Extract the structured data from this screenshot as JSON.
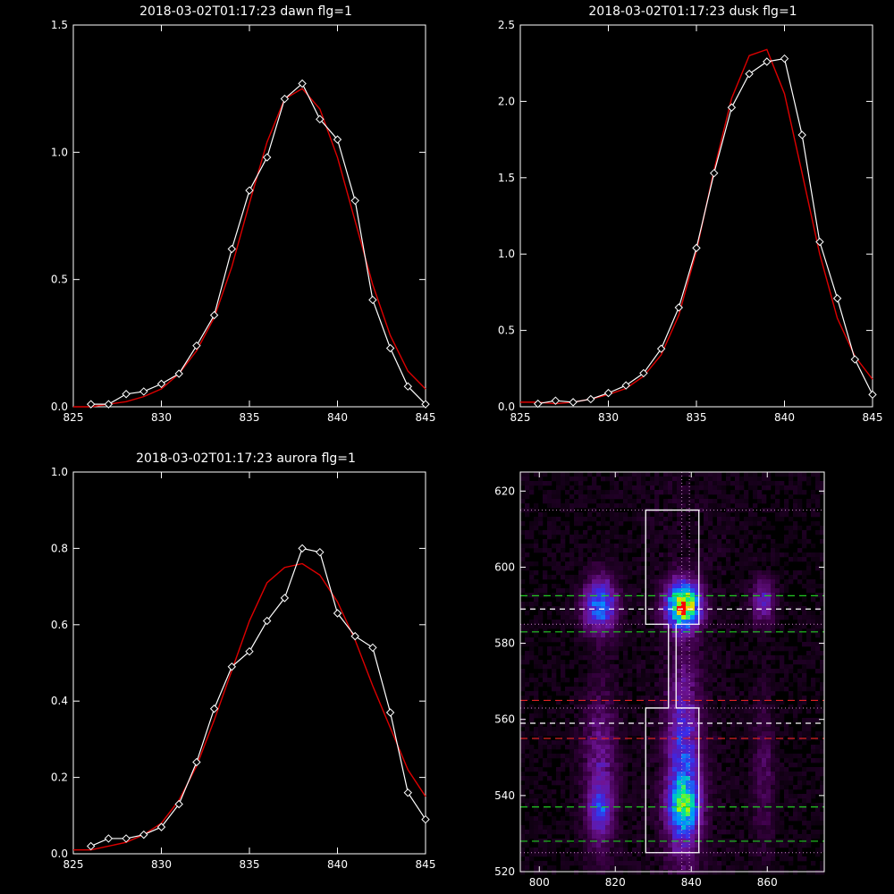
{
  "colors": {
    "background": "#000000",
    "axes": "#ffffff",
    "data_line": "#ffffff",
    "fit_line": "#dd0000",
    "green_guides": "#22cc22",
    "red_guides": "#dd2222",
    "white_guides": "#ffffff",
    "magenta_guides": "#cc88cc"
  },
  "chart_data": [
    {
      "type": "line",
      "title": "2018-03-02T01:17:23 dawn flg=1",
      "xlim": [
        825,
        845
      ],
      "ylim": [
        0,
        1.5
      ],
      "xticks": [
        825,
        830,
        835,
        840,
        845
      ],
      "yticks": [
        0,
        0.5,
        1.0,
        1.5
      ],
      "ytick_labels": [
        "0.0",
        "0.5",
        "1.0",
        "1.5"
      ],
      "series": [
        {
          "role": "measured",
          "marker": "diamond",
          "x": [
            826,
            827,
            828,
            829,
            830,
            831,
            832,
            833,
            834,
            835,
            836,
            837,
            838,
            839,
            840,
            841,
            842,
            843,
            844,
            845
          ],
          "y": [
            0.01,
            0.01,
            0.05,
            0.06,
            0.09,
            0.13,
            0.24,
            0.36,
            0.62,
            0.85,
            0.98,
            1.21,
            1.27,
            1.13,
            1.05,
            0.81,
            0.42,
            0.23,
            0.08,
            0.01
          ]
        },
        {
          "role": "fit",
          "x": [
            825,
            826,
            827,
            828,
            829,
            830,
            831,
            832,
            833,
            834,
            835,
            836,
            837,
            838,
            839,
            840,
            841,
            842,
            843,
            844,
            845
          ],
          "y": [
            0.0,
            0.0,
            0.01,
            0.02,
            0.04,
            0.07,
            0.13,
            0.22,
            0.35,
            0.55,
            0.8,
            1.04,
            1.21,
            1.25,
            1.17,
            0.98,
            0.73,
            0.48,
            0.28,
            0.14,
            0.07
          ]
        }
      ]
    },
    {
      "type": "line",
      "title": "2018-03-02T01:17:23 dusk flg=1",
      "xlim": [
        825,
        845
      ],
      "ylim": [
        0,
        2.5
      ],
      "xticks": [
        825,
        830,
        835,
        840,
        845
      ],
      "yticks": [
        0,
        0.5,
        1.0,
        1.5,
        2.0,
        2.5
      ],
      "ytick_labels": [
        "0.0",
        "0.5",
        "1.0",
        "1.5",
        "2.0",
        "2.5"
      ],
      "series": [
        {
          "role": "measured",
          "marker": "diamond",
          "x": [
            826,
            827,
            828,
            829,
            830,
            831,
            832,
            833,
            834,
            835,
            836,
            837,
            838,
            839,
            840,
            841,
            842,
            843,
            844,
            845
          ],
          "y": [
            0.02,
            0.04,
            0.03,
            0.05,
            0.09,
            0.14,
            0.22,
            0.38,
            0.65,
            1.04,
            1.53,
            1.96,
            2.18,
            2.26,
            2.28,
            1.78,
            1.08,
            0.71,
            0.31,
            0.08
          ]
        },
        {
          "role": "fit",
          "x": [
            825,
            826,
            827,
            828,
            829,
            830,
            831,
            832,
            833,
            834,
            835,
            836,
            837,
            838,
            839,
            840,
            841,
            842,
            843,
            844,
            845
          ],
          "y": [
            0.03,
            0.03,
            0.02,
            0.03,
            0.05,
            0.08,
            0.12,
            0.2,
            0.34,
            0.6,
            1.02,
            1.55,
            2.02,
            2.3,
            2.34,
            2.05,
            1.53,
            1.0,
            0.58,
            0.33,
            0.18
          ]
        }
      ]
    },
    {
      "type": "line",
      "title": "2018-03-02T01:17:23 aurora flg=1",
      "xlim": [
        825,
        845
      ],
      "ylim": [
        0,
        1.0
      ],
      "xticks": [
        825,
        830,
        835,
        840,
        845
      ],
      "yticks": [
        0,
        0.2,
        0.4,
        0.6,
        0.8,
        1.0
      ],
      "ytick_labels": [
        "0.0",
        "0.2",
        "0.4",
        "0.6",
        "0.8",
        "1.0"
      ],
      "series": [
        {
          "role": "measured",
          "marker": "diamond",
          "x": [
            826,
            827,
            828,
            829,
            830,
            831,
            832,
            833,
            834,
            835,
            836,
            837,
            838,
            839,
            840,
            841,
            842,
            843,
            844,
            845
          ],
          "y": [
            0.02,
            0.04,
            0.04,
            0.05,
            0.07,
            0.13,
            0.24,
            0.38,
            0.49,
            0.53,
            0.61,
            0.67,
            0.8,
            0.79,
            0.63,
            0.57,
            0.54,
            0.37,
            0.16,
            0.09
          ]
        },
        {
          "role": "fit",
          "x": [
            825,
            826,
            827,
            828,
            829,
            830,
            831,
            832,
            833,
            834,
            835,
            836,
            837,
            838,
            839,
            840,
            841,
            842,
            843,
            844,
            845
          ],
          "y": [
            0.01,
            0.01,
            0.02,
            0.03,
            0.05,
            0.08,
            0.14,
            0.23,
            0.35,
            0.48,
            0.61,
            0.71,
            0.75,
            0.76,
            0.73,
            0.66,
            0.56,
            0.44,
            0.33,
            0.22,
            0.15
          ]
        }
      ]
    },
    {
      "type": "heatmap",
      "xlim": [
        795,
        875
      ],
      "ylim": [
        520,
        625
      ],
      "xticks": [
        800,
        820,
        840,
        860
      ],
      "yticks": [
        520,
        540,
        560,
        580,
        600,
        620
      ],
      "blobs": [
        {
          "x": 816,
          "y": 590,
          "sx": 3,
          "sy": 5,
          "intensity": 0.48
        },
        {
          "x": 838,
          "y": 590,
          "sx": 3,
          "sy": 4,
          "intensity": 0.95
        },
        {
          "x": 859,
          "y": 591,
          "sx": 2,
          "sy": 4,
          "intensity": 0.28
        },
        {
          "x": 816,
          "y": 546,
          "sx": 3,
          "sy": 15,
          "intensity": 0.22
        },
        {
          "x": 816,
          "y": 536,
          "sx": 2,
          "sy": 4,
          "intensity": 0.25
        },
        {
          "x": 838,
          "y": 548,
          "sx": 3,
          "sy": 17,
          "intensity": 0.38
        },
        {
          "x": 838,
          "y": 537,
          "sx": 3,
          "sy": 5,
          "intensity": 0.4
        },
        {
          "x": 859,
          "y": 545,
          "sx": 2,
          "sy": 14,
          "intensity": 0.12
        }
      ],
      "outlines": {
        "upper_box": {
          "x": [
            828,
            842
          ],
          "y": [
            585,
            615
          ]
        },
        "lower_box": {
          "x": [
            828,
            842
          ],
          "y": [
            525,
            563
          ]
        },
        "connector_x": [
          834,
          836
        ]
      },
      "hlines": {
        "green_dashed": [
          592.5,
          583,
          537,
          528
        ],
        "white_dashed": [
          589,
          559
        ],
        "red_dashed": [
          565,
          555
        ],
        "magenta_dotted": [
          615,
          585,
          563,
          525
        ]
      },
      "vlines": {
        "magenta_dotted": [
          837.5,
          839.5
        ]
      }
    }
  ]
}
